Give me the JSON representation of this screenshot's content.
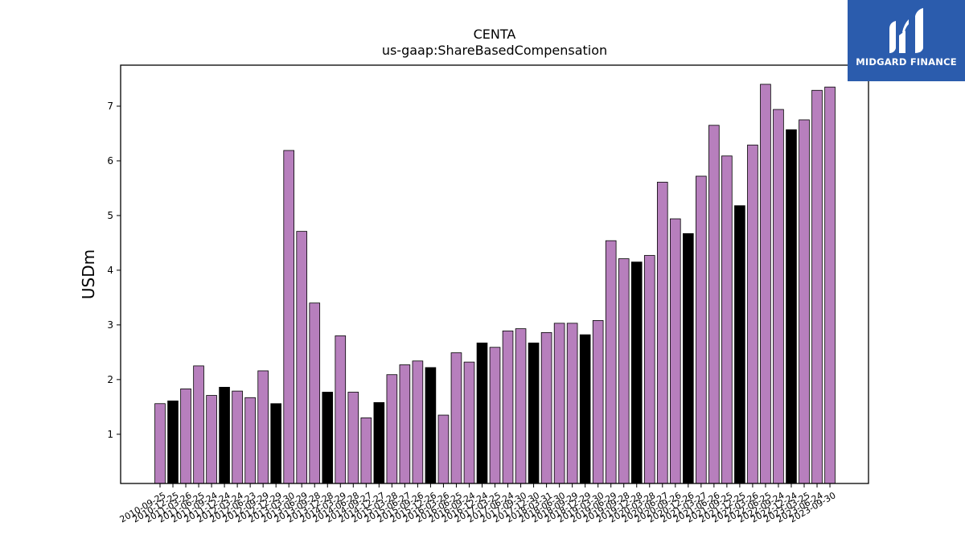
{
  "chart_data": {
    "type": "bar",
    "title": "CENTA",
    "subtitle": "us-gaap:ShareBasedCompensation",
    "xlabel": "",
    "ylabel": "USDm",
    "ylim": [
      0.1,
      7.75
    ],
    "yticks": [
      1,
      2,
      3,
      4,
      5,
      6,
      7
    ],
    "grid": false,
    "colors": {
      "quarter": "#b77fbd",
      "annual": "#000000",
      "edge": "#000000"
    },
    "categories": [
      "2010-09-25",
      "2010-12-25",
      "2011-03-26",
      "2011-06-25",
      "2011-09-24",
      "2011-12-24",
      "2012-03-24",
      "2012-06-23",
      "2012-09-29",
      "2012-12-29",
      "2013-03-30",
      "2013-06-29",
      "2013-09-28",
      "2013-12-28",
      "2014-03-29",
      "2014-06-28",
      "2014-09-27",
      "2014-12-27",
      "2015-03-28",
      "2015-06-27",
      "2015-09-26",
      "2015-12-26",
      "2016-03-26",
      "2016-06-25",
      "2016-09-24",
      "2016-12-24",
      "2017-03-25",
      "2017-06-24",
      "2017-09-30",
      "2017-12-30",
      "2018-03-31",
      "2018-06-30",
      "2018-09-29",
      "2018-12-29",
      "2019-03-30",
      "2019-06-29",
      "2019-09-28",
      "2019-12-28",
      "2020-03-28",
      "2020-06-27",
      "2020-09-26",
      "2020-12-26",
      "2021-03-27",
      "2021-06-26",
      "2021-09-25",
      "2021-12-25",
      "2022-03-26",
      "2022-06-25",
      "2022-09-24",
      "2022-12-24",
      "2023-03-25",
      "2023-06-24",
      "2023-09-30"
    ],
    "values": [
      1.56,
      1.61,
      1.83,
      2.25,
      1.71,
      1.86,
      1.79,
      1.67,
      2.16,
      1.56,
      6.19,
      4.71,
      3.4,
      1.77,
      2.8,
      1.77,
      1.3,
      1.58,
      2.09,
      2.27,
      2.34,
      2.22,
      1.35,
      2.49,
      2.32,
      2.67,
      2.59,
      2.89,
      2.93,
      2.67,
      2.86,
      3.03,
      3.03,
      2.82,
      3.08,
      4.54,
      4.21,
      4.15,
      4.27,
      5.61,
      4.94,
      4.67,
      5.72,
      6.65,
      6.09,
      5.18,
      6.29,
      7.4,
      6.94,
      6.57,
      6.75,
      7.29,
      7.35
    ],
    "annual": [
      false,
      true,
      false,
      false,
      false,
      true,
      false,
      false,
      false,
      true,
      false,
      false,
      false,
      true,
      false,
      false,
      false,
      true,
      false,
      false,
      false,
      true,
      false,
      false,
      false,
      true,
      false,
      false,
      false,
      true,
      false,
      false,
      false,
      true,
      false,
      false,
      false,
      true,
      false,
      false,
      false,
      true,
      false,
      false,
      false,
      true,
      false,
      false,
      false,
      true,
      false,
      false,
      false
    ]
  },
  "logo": {
    "text": "MIDGARD FINANCE",
    "background": "#2b5cad"
  }
}
